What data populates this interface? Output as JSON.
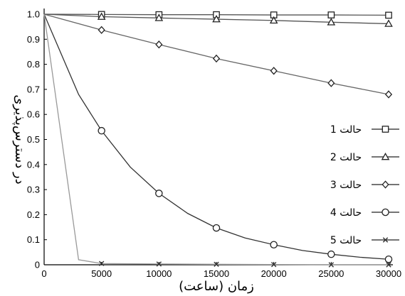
{
  "chart_data": {
    "type": "line",
    "xlabel": "زمان (ساعت)",
    "ylabel": "در دسترس‌پذیری",
    "xlim": [
      0,
      30000
    ],
    "ylim": [
      0,
      1.0
    ],
    "xticks": [
      "0",
      "5000",
      "10000",
      "15000",
      "20000",
      "25000",
      "30000"
    ],
    "yticks": [
      "0",
      "0.1",
      "0.2",
      "0.3",
      "0.4",
      "0.5",
      "0.6",
      "0.7",
      "0.8",
      "0.9",
      "1.0"
    ],
    "grid": false,
    "legend_position": "right",
    "series": [
      {
        "name": "حالت 1",
        "marker": "square",
        "color": "#555555",
        "x": [
          0,
          5000,
          10000,
          15000,
          20000,
          25000,
          30000
        ],
        "y": [
          1.0,
          0.999,
          0.998,
          0.998,
          0.997,
          0.997,
          0.996
        ],
        "markers_x": [
          5000,
          10000,
          15000,
          20000,
          25000,
          30000
        ]
      },
      {
        "name": "حالت 2",
        "marker": "triangle",
        "color": "#555555",
        "x": [
          0,
          5000,
          10000,
          15000,
          20000,
          25000,
          30000
        ],
        "y": [
          1.0,
          0.99,
          0.985,
          0.98,
          0.975,
          0.968,
          0.962
        ],
        "markers_x": [
          5000,
          10000,
          15000,
          20000,
          25000,
          30000
        ]
      },
      {
        "name": "حالت 3",
        "marker": "diamond",
        "color": "#666666",
        "x": [
          0,
          5000,
          10000,
          15000,
          20000,
          25000,
          30000
        ],
        "y": [
          1.0,
          0.937,
          0.879,
          0.823,
          0.774,
          0.725,
          0.68
        ],
        "markers_x": [
          5000,
          10000,
          15000,
          20000,
          25000,
          30000
        ]
      },
      {
        "name": "حالت 4",
        "marker": "circle",
        "color": "#333333",
        "x": [
          0,
          3000,
          5000,
          7500,
          10000,
          12500,
          15000,
          17500,
          20000,
          22500,
          25000,
          27500,
          30000
        ],
        "y": [
          1.0,
          0.68,
          0.535,
          0.39,
          0.285,
          0.205,
          0.147,
          0.107,
          0.08,
          0.057,
          0.042,
          0.03,
          0.022
        ],
        "markers_x": [
          5000,
          10000,
          15000,
          20000,
          25000,
          30000
        ]
      },
      {
        "name": "حالت 5",
        "marker": "x",
        "color": "#999999",
        "x": [
          0,
          3000,
          5000,
          10000,
          15000,
          20000,
          25000,
          30000
        ],
        "y": [
          1.0,
          0.02,
          0.005,
          0.003,
          0.002,
          0.001,
          0.0,
          0.0
        ],
        "markers_x": [
          5000,
          10000,
          15000,
          20000,
          25000,
          30000
        ]
      }
    ]
  }
}
